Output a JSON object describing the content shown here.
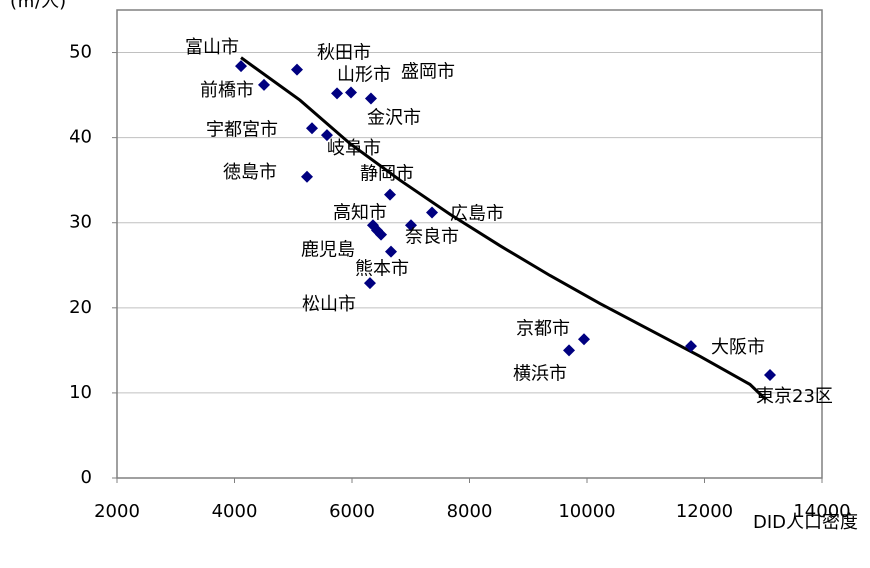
{
  "chart_data": {
    "type": "scatter",
    "y_label": "(㎡/人)",
    "x_label": "DID人口密度",
    "xlim": [
      2000,
      14000
    ],
    "xticks": [
      2000,
      4000,
      6000,
      8000,
      10000,
      12000,
      14000
    ],
    "ylim": [
      0,
      55
    ],
    "yticks": [
      0,
      10,
      20,
      30,
      40,
      50
    ],
    "grid": true,
    "series": [
      {
        "color": "#000080",
        "x": [
          4111,
          4502,
          5064,
          5745,
          5983,
          6323,
          5319,
          5574,
          5234,
          6647,
          7362,
          6357,
          6426,
          6494,
          7004,
          6664,
          6306,
          9949,
          9694,
          11770,
          13115
        ],
        "values": [
          48.4,
          46.2,
          48.0,
          45.2,
          45.3,
          44.6,
          41.1,
          40.3,
          35.4,
          33.3,
          31.2,
          29.7,
          29.1,
          28.6,
          29.7,
          26.6,
          22.9,
          16.3,
          15.0,
          15.5,
          12.1
        ],
        "labels": [
          "富山市",
          "前橋市",
          "秋田市",
          "山形市",
          "盛岡市",
          "金沢市",
          "宇都宮市",
          "岐阜市",
          "徳島市",
          "静岡市",
          "広島市",
          "高知市",
          null,
          "鹿児島",
          "奈良市",
          "熊本市",
          "松山市",
          "京都市",
          "横浜市",
          "大阪市",
          "東京23区"
        ]
      }
    ],
    "trendline": {
      "color": "#000000",
      "x": [
        4111,
        5115,
        5966,
        6817,
        7668,
        8519,
        9370,
        10221,
        11072,
        11923,
        12774,
        13046
      ],
      "values": [
        49.4,
        44.4,
        39.3,
        35.0,
        31.0,
        27.3,
        23.8,
        20.5,
        17.4,
        14.3,
        11.0,
        9.2
      ]
    }
  }
}
